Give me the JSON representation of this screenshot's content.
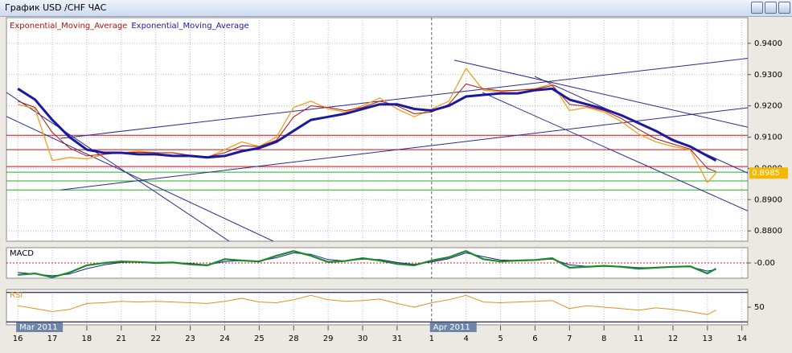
{
  "window_title": "График USD /CHF  ЧАС",
  "chart_data": [
    {
      "type": "line",
      "xlim": [
        -0.33,
        21.17
      ],
      "ylim": [
        0.8767,
        0.9482
      ],
      "x": [
        0,
        0.5,
        1,
        1.5,
        2,
        2.5,
        3,
        3.5,
        4,
        4.5,
        5,
        5.5,
        6,
        6.5,
        7,
        7.5,
        8,
        8.5,
        9,
        9.5,
        10,
        10.5,
        11,
        11.5,
        12,
        12.5,
        13,
        13.5,
        14,
        14.5,
        15,
        15.5,
        16,
        16.5,
        17,
        17.5,
        18,
        18.5,
        19,
        19.5,
        20,
        20.25
      ],
      "xticks": [
        {
          "value": 0,
          "label": "16"
        },
        {
          "value": 1,
          "label": "17"
        },
        {
          "value": 2,
          "label": "18"
        },
        {
          "value": 3,
          "label": "21"
        },
        {
          "value": 4,
          "label": "22"
        },
        {
          "value": 5,
          "label": "23"
        },
        {
          "value": 6,
          "label": "24"
        },
        {
          "value": 7,
          "label": "25"
        },
        {
          "value": 8,
          "label": "28"
        },
        {
          "value": 9,
          "label": "29"
        },
        {
          "value": 10,
          "label": "30"
        },
        {
          "value": 11,
          "label": "31"
        },
        {
          "value": 12,
          "label": "1"
        },
        {
          "value": 13,
          "label": "4"
        },
        {
          "value": 14,
          "label": "5"
        },
        {
          "value": 15,
          "label": "6"
        },
        {
          "value": 16,
          "label": "7"
        },
        {
          "value": 17,
          "label": "8"
        },
        {
          "value": 18,
          "label": "11"
        },
        {
          "value": 19,
          "label": "12"
        },
        {
          "value": 20,
          "label": "13"
        },
        {
          "value": 21,
          "label": "14"
        }
      ],
      "period_labels": [
        {
          "x": 0,
          "label": "Mar 2011"
        },
        {
          "x": 12,
          "label": "Apr 2011"
        }
      ],
      "yticks": [
        {
          "value": 0.88,
          "label": "0.8800"
        },
        {
          "value": 0.89,
          "label": "0.8900"
        },
        {
          "value": 0.9,
          "label": "0.9000"
        },
        {
          "value": 0.91,
          "label": "0.9100"
        },
        {
          "value": 0.92,
          "label": "0.9200"
        },
        {
          "value": 0.93,
          "label": "0.9300"
        },
        {
          "value": 0.94,
          "label": "0.9400"
        }
      ],
      "grid": true,
      "last_value": 0.8985,
      "series": [
        {
          "color": "#f0a020",
          "width": 1.3,
          "values": [
            0.9205,
            0.919,
            0.9025,
            0.9035,
            0.903,
            0.9045,
            0.905,
            0.9055,
            0.905,
            0.905,
            0.904,
            0.9035,
            0.906,
            0.9085,
            0.907,
            0.91,
            0.9195,
            0.9215,
            0.919,
            0.918,
            0.92,
            0.9225,
            0.919,
            0.9165,
            0.919,
            0.9215,
            0.932,
            0.925,
            0.9245,
            0.925,
            0.9255,
            0.927,
            0.9185,
            0.9195,
            0.918,
            0.915,
            0.911,
            0.9085,
            0.907,
            0.906,
            0.8955,
            0.8985
          ]
        },
        {
          "name": "Exponential_Moving_Average",
          "color": "#b01010",
          "width": 1,
          "values": [
            0.9215,
            0.9195,
            0.9115,
            0.9065,
            0.904,
            0.9045,
            0.905,
            0.9052,
            0.905,
            0.905,
            0.9042,
            0.9037,
            0.905,
            0.9072,
            0.907,
            0.909,
            0.9165,
            0.92,
            0.9195,
            0.9185,
            0.9195,
            0.9215,
            0.92,
            0.9175,
            0.918,
            0.9205,
            0.927,
            0.9255,
            0.9248,
            0.925,
            0.9253,
            0.9265,
            0.9205,
            0.9198,
            0.9185,
            0.916,
            0.9125,
            0.9095,
            0.9078,
            0.9062,
            0.9,
            0.899
          ]
        },
        {
          "name": "Exponential_Moving_Average",
          "color": "#1a1aa0",
          "width": 3,
          "values": [
            0.9255,
            0.922,
            0.9155,
            0.91,
            0.906,
            0.905,
            0.905,
            0.9045,
            0.9045,
            0.904,
            0.904,
            0.9035,
            0.904,
            0.9055,
            0.9065,
            0.9085,
            0.912,
            0.9155,
            0.9165,
            0.9175,
            0.919,
            0.9205,
            0.9205,
            0.919,
            0.9185,
            0.92,
            0.923,
            0.9235,
            0.924,
            0.924,
            0.925,
            0.9255,
            0.922,
            0.9205,
            0.919,
            0.917,
            0.9145,
            0.912,
            0.909,
            0.907,
            0.904,
            0.9025
          ]
        }
      ],
      "hlines": [
        {
          "value": 0.9106,
          "color": "#c01010"
        },
        {
          "value": 0.906,
          "color": "#c01010"
        },
        {
          "value": 0.9006,
          "color": "#c01010"
        },
        {
          "value": 0.8988,
          "color": "#20b020"
        },
        {
          "value": 0.896,
          "color": "#20b020"
        },
        {
          "value": 0.8931,
          "color": "#20b020"
        }
      ],
      "trendlines": [
        {
          "x": [
            1.24,
            21.17
          ],
          "y": [
            0.9096,
            0.9352
          ]
        },
        {
          "x": [
            1.24,
            21.17
          ],
          "y": [
            0.8931,
            0.9194
          ]
        },
        {
          "x": [
            -0.33,
            6.13
          ],
          "y": [
            0.9243,
            0.8767
          ]
        },
        {
          "x": [
            -0.33,
            7.41
          ],
          "y": [
            0.9166,
            0.8767
          ]
        },
        {
          "x": [
            12.66,
            21.17
          ],
          "y": [
            0.9346,
            0.9132
          ]
        },
        {
          "x": [
            13.47,
            21.17
          ],
          "y": [
            0.9243,
            0.8864
          ]
        },
        {
          "x": [
            14.99,
            21.17
          ],
          "y": [
            0.9294,
            0.8985
          ]
        }
      ],
      "trendline_color": "#2a2a90"
    },
    {
      "type": "line",
      "title": "MACD",
      "ylim": [
        -0.0032,
        0.0032
      ],
      "yticks": [
        {
          "value": 0,
          "label": "-0.00"
        }
      ],
      "series": [
        {
          "color": "#1a1aa0",
          "width": 1,
          "values": [
            -0.002,
            -0.0023,
            -0.0027,
            -0.0023,
            -0.0012,
            -0.0004,
            0.0001,
            0.0002,
            0.0001,
            0.0001,
            -0.0001,
            -0.0004,
            0.0003,
            0.0005,
            0.0004,
            0.0011,
            0.0021,
            0.0018,
            0.0007,
            0.0004,
            0.0008,
            0.0007,
            0.0001,
            -0.0003,
            0.0002,
            0.0009,
            0.0021,
            0.0013,
            0.0006,
            0.0005,
            0.0006,
            0.0008,
            -0.0004,
            -0.0007,
            -0.0006,
            -0.0007,
            -0.001,
            -0.001,
            -0.0009,
            -0.0008,
            -0.0017,
            -0.0014
          ]
        },
        {
          "color": "#1a8a2a",
          "width": 2.2,
          "values": [
            -0.0025,
            -0.0022,
            -0.003,
            -0.002,
            -0.0005,
            0.0,
            0.0003,
            0.0002,
            0.0,
            0.0001,
            -0.0003,
            -0.0005,
            0.0008,
            0.0005,
            0.0003,
            0.0015,
            0.0025,
            0.0015,
            0.0002,
            0.0004,
            0.001,
            0.0005,
            -0.0002,
            -0.0005,
            0.0005,
            0.0012,
            0.0025,
            0.0008,
            0.0003,
            0.0005,
            0.0006,
            0.001,
            -0.001,
            -0.0008,
            -0.0006,
            -0.0008,
            -0.0012,
            -0.001,
            -0.0008,
            -0.0007,
            -0.0022,
            -0.0012
          ]
        }
      ],
      "zero_line_color": "#d02020"
    },
    {
      "type": "line",
      "title": "RSI",
      "ylim": [
        26,
        74
      ],
      "yticks": [
        50
      ],
      "levels": [
        30,
        70
      ],
      "level_color": "#404060",
      "series": [
        {
          "color": "#e09020",
          "width": 1,
          "values": [
            52,
            48,
            44,
            47,
            55,
            56,
            58,
            57,
            58,
            57,
            56,
            55,
            58,
            62,
            57,
            56,
            60,
            66,
            60,
            58,
            59,
            61,
            55,
            50,
            56,
            60,
            66,
            57,
            56,
            57,
            58,
            59,
            48,
            52,
            50,
            48,
            46,
            49,
            47,
            44,
            40,
            46
          ]
        }
      ]
    }
  ]
}
